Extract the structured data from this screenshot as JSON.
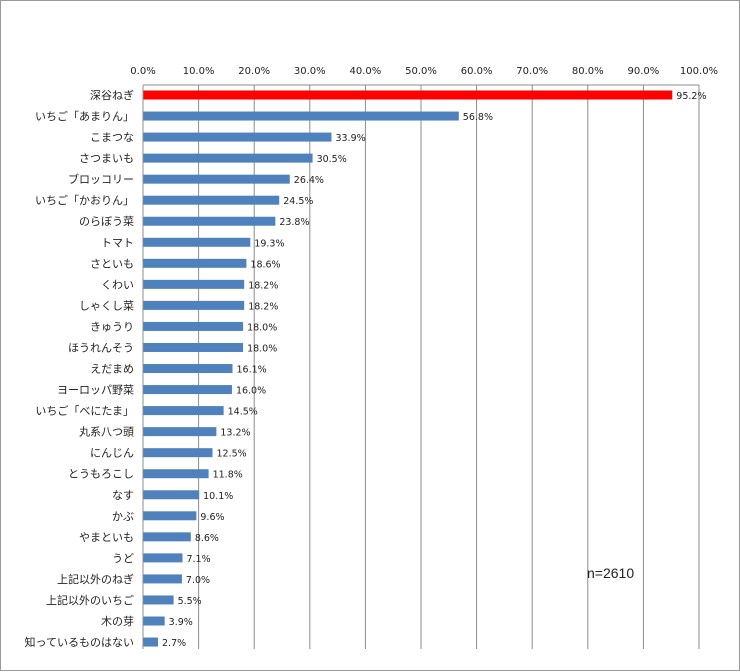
{
  "chart_data": {
    "type": "bar",
    "orientation": "horizontal",
    "categories": [
      "深谷ねぎ",
      "いちご「あまりん」",
      "こまつな",
      "さつまいも",
      "ブロッコリー",
      "いちご「かおりん」",
      "のらぼう菜",
      "トマト",
      "さといも",
      "くわい",
      "しゃくし菜",
      "きゅうり",
      "ほうれんそう",
      "えだまめ",
      "ヨーロッパ野菜",
      "いちご「べにたま」",
      "丸系八つ頭",
      "にんじん",
      "とうもろこし",
      "なす",
      "かぶ",
      "やまといも",
      "うど",
      "上記以外のねぎ",
      "上記以外のいちご",
      "木の芽",
      "知っているものはない"
    ],
    "values": [
      95.2,
      56.8,
      33.9,
      30.5,
      26.4,
      24.5,
      23.8,
      19.3,
      18.6,
      18.2,
      18.2,
      18.0,
      18.0,
      16.1,
      16.0,
      14.5,
      13.2,
      12.5,
      11.8,
      10.1,
      9.6,
      8.6,
      7.1,
      7.0,
      5.5,
      3.9,
      2.7
    ],
    "value_labels": [
      "95.2%",
      "56.8%",
      "33.9%",
      "30.5%",
      "26.4%",
      "24.5%",
      "23.8%",
      "19.3%",
      "18.6%",
      "18.2%",
      "18.2%",
      "18.0%",
      "18.0%",
      "16.1%",
      "16.0%",
      "14.5%",
      "13.2%",
      "12.5%",
      "11.8%",
      "10.1%",
      "9.6%",
      "8.6%",
      "7.1%",
      "7.0%",
      "5.5%",
      "3.9%",
      "2.7%"
    ],
    "xlim": [
      0,
      100
    ],
    "x_ticks": [
      "0.0%",
      "10.0%",
      "20.0%",
      "30.0%",
      "40.0%",
      "50.0%",
      "60.0%",
      "70.0%",
      "80.0%",
      "90.0%",
      "100.0%"
    ],
    "x_axis_position": "top",
    "grid": true,
    "colors": {
      "default": "#4f81bd",
      "highlight": "#ff0000"
    },
    "highlight_index": 0,
    "annotation": "n=2610"
  }
}
